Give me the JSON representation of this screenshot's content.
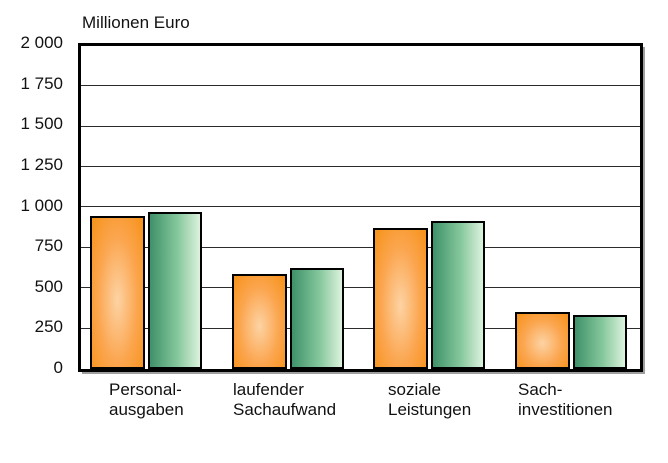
{
  "figure": {
    "axis_unit_title": "Millionen Euro",
    "background_color": "#ffffff",
    "plot_border_color": "#000000",
    "gridline_color": "#2b2b2b"
  },
  "chart_data": {
    "type": "bar",
    "title": "Millionen Euro",
    "xlabel": "",
    "ylabel": "Millionen Euro",
    "ylim": [
      0,
      2000
    ],
    "ytick_interval": 250,
    "ytick_values": [
      2000,
      1750,
      1500,
      1250,
      1000,
      750,
      500,
      250,
      0
    ],
    "ytick_labels": [
      "2 000",
      "1 750",
      "1 500",
      "1 250",
      "1 000",
      "750",
      "500",
      "250",
      "0"
    ],
    "grid": true,
    "legend_position": "none",
    "categories": [
      {
        "slug": "personalausgaben",
        "label_lines": [
          "Personal-",
          "ausgaben"
        ]
      },
      {
        "slug": "laufender-sachaufwand",
        "label_lines": [
          "laufender",
          "Sachaufwand"
        ]
      },
      {
        "slug": "soziale-leistungen",
        "label_lines": [
          "soziale",
          "Leistungen"
        ]
      },
      {
        "slug": "sachinvestitionen",
        "label_lines": [
          "Sach-",
          "investitionen"
        ]
      }
    ],
    "series": [
      {
        "name": "series-1-orange",
        "values": [
          950,
          590,
          870,
          355
        ],
        "colors": {
          "edge": "#f7941e",
          "mid": "#fba54e",
          "light": "#fdd3a4"
        }
      },
      {
        "name": "series-2-green",
        "values": [
          975,
          625,
          915,
          335
        ],
        "colors": {
          "dark": "#3f9169",
          "mid": "#85c79c",
          "light": "#dcf3dd"
        }
      }
    ]
  }
}
